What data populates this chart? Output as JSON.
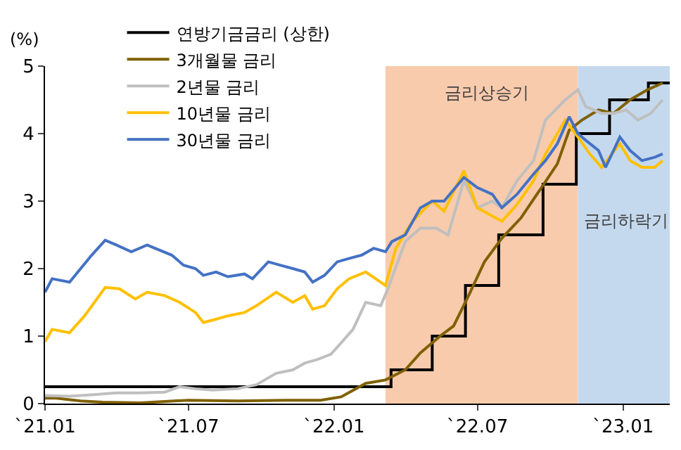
{
  "chart_data": {
    "type": "line",
    "ylabel": "(%)",
    "xlim": [
      "2021-01-01",
      "2023-03-01"
    ],
    "xticks": [
      {
        "value": "2021-01-01",
        "label": "`21.01"
      },
      {
        "value": "2021-07-01",
        "label": "`21.07"
      },
      {
        "value": "2022-01-01",
        "label": "`22.01"
      },
      {
        "value": "2022-07-01",
        "label": "`22.07"
      },
      {
        "value": "2023-01-01",
        "label": "`23.01"
      }
    ],
    "ylim": [
      0,
      5
    ],
    "yticks": [
      0,
      1,
      2,
      3,
      4,
      5
    ],
    "grid": false,
    "legend": "top left",
    "line_style": "solid",
    "marker": "none",
    "bands": [
      {
        "axis": "x",
        "from": "2022-03-07",
        "to": "2022-11-05",
        "label": "금리상승기",
        "color": "#f8cbad"
      },
      {
        "axis": "x",
        "from": "2022-11-05",
        "to": "2023-03-01",
        "label": "금리하락기",
        "color": "#c5d9ee"
      }
    ],
    "series": [
      {
        "name": "연방기금금리 (상한)",
        "type": "step",
        "color": "#000000",
        "x": [
          "2021-01-01",
          "2022-03-14",
          "2022-05-05",
          "2022-06-16",
          "2022-07-28",
          "2022-09-22",
          "2022-11-03",
          "2022-12-15",
          "2023-02-02",
          "2023-03-01"
        ],
        "values": [
          0.25,
          0.5,
          1.0,
          1.75,
          2.5,
          3.25,
          4.0,
          4.5,
          4.75,
          4.75
        ]
      },
      {
        "name": "3개월물 금리",
        "color": "#7f6000",
        "x": [
          "2021-01-01",
          "2021-01-15",
          "2021-02-15",
          "2021-03-15",
          "2021-05-01",
          "2021-07-01",
          "2021-09-01",
          "2021-11-01",
          "2021-12-15",
          "2022-01-10",
          "2022-02-10",
          "2022-03-07",
          "2022-04-01",
          "2022-04-20",
          "2022-05-15",
          "2022-06-01",
          "2022-06-20",
          "2022-07-10",
          "2022-08-01",
          "2022-08-25",
          "2022-09-20",
          "2022-10-10",
          "2022-10-25",
          "2022-11-10",
          "2022-12-01",
          "2022-12-20",
          "2023-01-10",
          "2023-02-01",
          "2023-02-20"
        ],
        "values": [
          0.08,
          0.08,
          0.04,
          0.02,
          0.01,
          0.05,
          0.04,
          0.05,
          0.05,
          0.1,
          0.3,
          0.35,
          0.5,
          0.75,
          1.0,
          1.15,
          1.6,
          2.1,
          2.45,
          2.75,
          3.2,
          3.55,
          4.05,
          4.2,
          4.35,
          4.3,
          4.5,
          4.65,
          4.75
        ]
      },
      {
        "name": "2년물 금리",
        "color": "#bfbfbf",
        "x": [
          "2021-01-01",
          "2021-02-01",
          "2021-03-01",
          "2021-04-01",
          "2021-05-01",
          "2021-06-01",
          "2021-06-20",
          "2021-07-10",
          "2021-08-01",
          "2021-09-01",
          "2021-09-25",
          "2021-10-20",
          "2021-11-10",
          "2021-11-25",
          "2021-12-10",
          "2021-12-28",
          "2022-01-10",
          "2022-01-25",
          "2022-02-10",
          "2022-03-01",
          "2022-03-10",
          "2022-04-01",
          "2022-04-20",
          "2022-05-10",
          "2022-05-25",
          "2022-06-14",
          "2022-07-01",
          "2022-07-20",
          "2022-08-01",
          "2022-08-20",
          "2022-09-10",
          "2022-09-25",
          "2022-10-20",
          "2022-11-05",
          "2022-11-15",
          "2022-12-05",
          "2022-12-20",
          "2023-01-05",
          "2023-01-20",
          "2023-02-05",
          "2023-02-20"
        ],
        "values": [
          0.12,
          0.11,
          0.13,
          0.16,
          0.16,
          0.17,
          0.25,
          0.22,
          0.2,
          0.22,
          0.28,
          0.45,
          0.5,
          0.6,
          0.65,
          0.73,
          0.9,
          1.1,
          1.5,
          1.45,
          1.7,
          2.4,
          2.6,
          2.6,
          2.5,
          3.3,
          2.9,
          3.0,
          2.9,
          3.3,
          3.6,
          4.2,
          4.5,
          4.65,
          4.4,
          4.3,
          4.3,
          4.35,
          4.2,
          4.3,
          4.5
        ]
      },
      {
        "name": "10년물 금리",
        "color": "#ffc000",
        "x": [
          "2021-01-01",
          "2021-01-10",
          "2021-02-01",
          "2021-02-20",
          "2021-03-18",
          "2021-04-05",
          "2021-04-25",
          "2021-05-10",
          "2021-06-01",
          "2021-06-20",
          "2021-07-10",
          "2021-07-20",
          "2021-08-05",
          "2021-08-20",
          "2021-09-10",
          "2021-09-25",
          "2021-10-20",
          "2021-11-10",
          "2021-11-25",
          "2021-12-05",
          "2021-12-20",
          "2022-01-05",
          "2022-01-20",
          "2022-02-10",
          "2022-03-07",
          "2022-03-20",
          "2022-04-10",
          "2022-05-05",
          "2022-05-20",
          "2022-06-14",
          "2022-07-01",
          "2022-08-01",
          "2022-08-20",
          "2022-09-10",
          "2022-09-25",
          "2022-10-20",
          "2022-11-05",
          "2022-11-20",
          "2022-12-05",
          "2022-12-28",
          "2023-01-10",
          "2023-01-25",
          "2023-02-10",
          "2023-02-20"
        ],
        "values": [
          0.92,
          1.1,
          1.05,
          1.3,
          1.72,
          1.7,
          1.55,
          1.65,
          1.6,
          1.5,
          1.35,
          1.2,
          1.25,
          1.3,
          1.35,
          1.45,
          1.65,
          1.5,
          1.6,
          1.4,
          1.45,
          1.7,
          1.85,
          1.95,
          1.75,
          2.3,
          2.7,
          3.0,
          2.85,
          3.45,
          2.9,
          2.7,
          2.95,
          3.3,
          3.7,
          4.2,
          3.95,
          3.7,
          3.5,
          3.85,
          3.6,
          3.5,
          3.5,
          3.6
        ]
      },
      {
        "name": "30년물 금리",
        "color": "#4472c4",
        "x": [
          "2021-01-01",
          "2021-01-10",
          "2021-02-01",
          "2021-02-15",
          "2021-03-01",
          "2021-03-18",
          "2021-04-01",
          "2021-04-20",
          "2021-05-10",
          "2021-05-20",
          "2021-06-10",
          "2021-06-25",
          "2021-07-10",
          "2021-07-20",
          "2021-08-05",
          "2021-08-20",
          "2021-09-10",
          "2021-09-20",
          "2021-10-10",
          "2021-10-25",
          "2021-11-10",
          "2021-11-25",
          "2021-12-05",
          "2021-12-20",
          "2022-01-05",
          "2022-01-20",
          "2022-02-05",
          "2022-02-20",
          "2022-03-07",
          "2022-03-15",
          "2022-04-01",
          "2022-04-20",
          "2022-05-05",
          "2022-05-20",
          "2022-06-14",
          "2022-07-01",
          "2022-07-20",
          "2022-08-01",
          "2022-08-20",
          "2022-09-10",
          "2022-09-25",
          "2022-10-10",
          "2022-10-25",
          "2022-11-05",
          "2022-11-15",
          "2022-12-01",
          "2022-12-10",
          "2022-12-28",
          "2023-01-10",
          "2023-01-25",
          "2023-02-10",
          "2023-02-20"
        ],
        "values": [
          1.65,
          1.85,
          1.8,
          2.0,
          2.2,
          2.42,
          2.35,
          2.25,
          2.35,
          2.3,
          2.2,
          2.05,
          2.0,
          1.9,
          1.95,
          1.88,
          1.92,
          1.85,
          2.1,
          2.05,
          2.0,
          1.95,
          1.8,
          1.9,
          2.1,
          2.15,
          2.2,
          2.3,
          2.25,
          2.4,
          2.5,
          2.9,
          3.0,
          3.0,
          3.35,
          3.2,
          3.1,
          2.9,
          3.1,
          3.4,
          3.6,
          3.85,
          4.25,
          4.0,
          3.9,
          3.75,
          3.5,
          3.95,
          3.75,
          3.6,
          3.65,
          3.7
        ]
      }
    ]
  }
}
